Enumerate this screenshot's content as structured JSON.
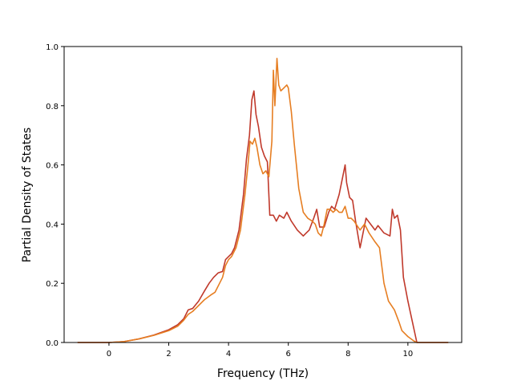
{
  "chart_data": {
    "type": "line",
    "title": "",
    "xlabel": "Frequency (THz)",
    "ylabel": "Partial Density of States",
    "xlim": [
      -1.5,
      11.8
    ],
    "ylim": [
      0.0,
      1.0
    ],
    "xticks": [
      0,
      2,
      4,
      6,
      8,
      10
    ],
    "xtick_labels": [
      "0",
      "2",
      "4",
      "6",
      "8",
      "10"
    ],
    "yticks": [
      0.0,
      0.2,
      0.4,
      0.6,
      0.8,
      1.0
    ],
    "ytick_labels": [
      "0.0",
      "0.2",
      "0.4",
      "0.6",
      "0.8",
      "1.0"
    ],
    "grid": false,
    "legend": "none",
    "series": [
      {
        "color": "#c0392b",
        "points": [
          [
            -1.05,
            0.0
          ],
          [
            0.0,
            0.0
          ],
          [
            0.5,
            0.003
          ],
          [
            1.0,
            0.012
          ],
          [
            1.5,
            0.025
          ],
          [
            2.0,
            0.043
          ],
          [
            2.3,
            0.06
          ],
          [
            2.5,
            0.08
          ],
          [
            2.65,
            0.11
          ],
          [
            2.8,
            0.115
          ],
          [
            3.0,
            0.14
          ],
          [
            3.2,
            0.175
          ],
          [
            3.35,
            0.2
          ],
          [
            3.5,
            0.22
          ],
          [
            3.65,
            0.235
          ],
          [
            3.8,
            0.24
          ],
          [
            3.9,
            0.28
          ],
          [
            4.0,
            0.29
          ],
          [
            4.1,
            0.3
          ],
          [
            4.2,
            0.32
          ],
          [
            4.35,
            0.38
          ],
          [
            4.5,
            0.5
          ],
          [
            4.6,
            0.62
          ],
          [
            4.7,
            0.7
          ],
          [
            4.78,
            0.82
          ],
          [
            4.85,
            0.85
          ],
          [
            4.92,
            0.77
          ],
          [
            5.0,
            0.73
          ],
          [
            5.1,
            0.66
          ],
          [
            5.2,
            0.63
          ],
          [
            5.3,
            0.61
          ],
          [
            5.38,
            0.43
          ],
          [
            5.5,
            0.43
          ],
          [
            5.6,
            0.41
          ],
          [
            5.7,
            0.43
          ],
          [
            5.85,
            0.42
          ],
          [
            5.95,
            0.44
          ],
          [
            6.1,
            0.41
          ],
          [
            6.3,
            0.38
          ],
          [
            6.5,
            0.36
          ],
          [
            6.7,
            0.38
          ],
          [
            6.85,
            0.42
          ],
          [
            6.95,
            0.45
          ],
          [
            7.05,
            0.39
          ],
          [
            7.2,
            0.39
          ],
          [
            7.35,
            0.44
          ],
          [
            7.45,
            0.46
          ],
          [
            7.55,
            0.45
          ],
          [
            7.7,
            0.5
          ],
          [
            7.8,
            0.55
          ],
          [
            7.9,
            0.6
          ],
          [
            7.95,
            0.54
          ],
          [
            8.05,
            0.49
          ],
          [
            8.15,
            0.48
          ],
          [
            8.25,
            0.41
          ],
          [
            8.4,
            0.32
          ],
          [
            8.5,
            0.37
          ],
          [
            8.6,
            0.42
          ],
          [
            8.75,
            0.4
          ],
          [
            8.9,
            0.38
          ],
          [
            9.0,
            0.395
          ],
          [
            9.2,
            0.37
          ],
          [
            9.4,
            0.36
          ],
          [
            9.48,
            0.45
          ],
          [
            9.55,
            0.42
          ],
          [
            9.65,
            0.43
          ],
          [
            9.75,
            0.38
          ],
          [
            9.85,
            0.22
          ],
          [
            10.0,
            0.14
          ],
          [
            10.15,
            0.07
          ],
          [
            10.3,
            0.0
          ],
          [
            11.35,
            0.0
          ]
        ]
      },
      {
        "color": "#e67e22",
        "points": [
          [
            -1.05,
            0.0
          ],
          [
            0.0,
            0.0
          ],
          [
            0.5,
            0.003
          ],
          [
            1.0,
            0.012
          ],
          [
            1.5,
            0.024
          ],
          [
            2.0,
            0.04
          ],
          [
            2.3,
            0.055
          ],
          [
            2.5,
            0.075
          ],
          [
            2.65,
            0.095
          ],
          [
            2.8,
            0.105
          ],
          [
            3.0,
            0.125
          ],
          [
            3.2,
            0.145
          ],
          [
            3.4,
            0.16
          ],
          [
            3.55,
            0.17
          ],
          [
            3.7,
            0.2
          ],
          [
            3.8,
            0.22
          ],
          [
            3.9,
            0.26
          ],
          [
            4.0,
            0.28
          ],
          [
            4.1,
            0.29
          ],
          [
            4.25,
            0.32
          ],
          [
            4.4,
            0.38
          ],
          [
            4.55,
            0.5
          ],
          [
            4.65,
            0.6
          ],
          [
            4.72,
            0.68
          ],
          [
            4.8,
            0.67
          ],
          [
            4.88,
            0.69
          ],
          [
            4.95,
            0.66
          ],
          [
            5.05,
            0.6
          ],
          [
            5.15,
            0.57
          ],
          [
            5.25,
            0.58
          ],
          [
            5.35,
            0.56
          ],
          [
            5.45,
            0.68
          ],
          [
            5.5,
            0.92
          ],
          [
            5.55,
            0.8
          ],
          [
            5.62,
            0.96
          ],
          [
            5.68,
            0.87
          ],
          [
            5.75,
            0.85
          ],
          [
            5.85,
            0.86
          ],
          [
            5.95,
            0.87
          ],
          [
            6.0,
            0.86
          ],
          [
            6.1,
            0.78
          ],
          [
            6.2,
            0.67
          ],
          [
            6.35,
            0.52
          ],
          [
            6.5,
            0.44
          ],
          [
            6.65,
            0.42
          ],
          [
            6.8,
            0.41
          ],
          [
            6.9,
            0.4
          ],
          [
            7.0,
            0.37
          ],
          [
            7.1,
            0.36
          ],
          [
            7.2,
            0.4
          ],
          [
            7.3,
            0.45
          ],
          [
            7.4,
            0.45
          ],
          [
            7.5,
            0.44
          ],
          [
            7.6,
            0.45
          ],
          [
            7.7,
            0.44
          ],
          [
            7.8,
            0.44
          ],
          [
            7.9,
            0.46
          ],
          [
            8.0,
            0.42
          ],
          [
            8.1,
            0.42
          ],
          [
            8.2,
            0.41
          ],
          [
            8.4,
            0.38
          ],
          [
            8.55,
            0.4
          ],
          [
            8.7,
            0.37
          ],
          [
            8.9,
            0.34
          ],
          [
            9.05,
            0.32
          ],
          [
            9.2,
            0.2
          ],
          [
            9.35,
            0.14
          ],
          [
            9.55,
            0.11
          ],
          [
            9.7,
            0.07
          ],
          [
            9.8,
            0.04
          ],
          [
            10.0,
            0.02
          ],
          [
            10.2,
            0.005
          ],
          [
            10.3,
            0.0
          ],
          [
            11.35,
            0.0
          ]
        ]
      }
    ]
  }
}
